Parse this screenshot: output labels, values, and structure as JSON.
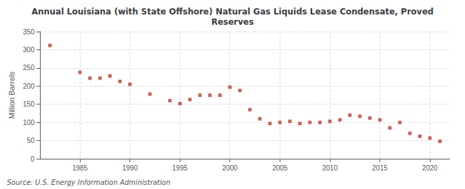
{
  "chart_data": {
    "type": "scatter",
    "title": "Annual Louisiana (with State Offshore) Natural Gas Liquids Lease Condensate, Proved\nReserves",
    "ylabel": "Million Barrels",
    "source": "Source: U.S. Energy Information Administration",
    "x": [
      1982,
      1985,
      1986,
      1987,
      1988,
      1989,
      1990,
      1992,
      1994,
      1995,
      1996,
      1997,
      1998,
      1999,
      2000,
      2001,
      2002,
      2003,
      2004,
      2005,
      2006,
      2007,
      2008,
      2009,
      2010,
      2011,
      2012,
      2013,
      2014,
      2015,
      2016,
      2017,
      2018,
      2019,
      2020,
      2021
    ],
    "values": [
      312,
      238,
      222,
      222,
      228,
      213,
      205,
      178,
      160,
      152,
      163,
      175,
      175,
      175,
      197,
      188,
      135,
      110,
      97,
      100,
      103,
      97,
      100,
      100,
      103,
      107,
      120,
      117,
      112,
      107,
      85,
      100,
      70,
      62,
      57,
      48
    ],
    "color": "#c0392b",
    "marker": "square",
    "xlim": [
      1981,
      2022
    ],
    "xticks": [
      1985,
      1990,
      1995,
      2000,
      2005,
      2010,
      2015,
      2020
    ],
    "ylim": [
      0,
      350
    ],
    "yticks": [
      0,
      50,
      100,
      150,
      200,
      250,
      300,
      350
    ],
    "grid": true
  }
}
